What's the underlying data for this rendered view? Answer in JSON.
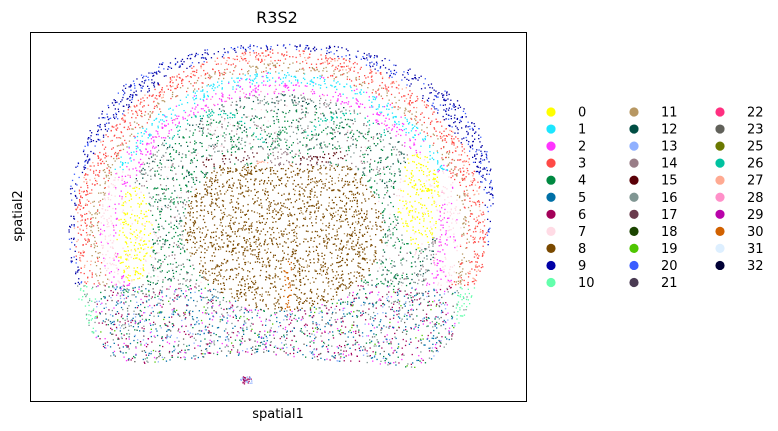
{
  "chart_data": {
    "type": "scatter",
    "title": "R3S2",
    "xlabel": "spatial1",
    "ylabel": "spatial2",
    "grid": false,
    "ticks": false,
    "legend_position": "right",
    "legend_columns": 3,
    "categories": [
      {
        "label": "0",
        "color": "#ffff00"
      },
      {
        "label": "1",
        "color": "#1ce6ff"
      },
      {
        "label": "2",
        "color": "#ff34ff"
      },
      {
        "label": "3",
        "color": "#ff4a46"
      },
      {
        "label": "4",
        "color": "#008941"
      },
      {
        "label": "5",
        "color": "#006fa6"
      },
      {
        "label": "6",
        "color": "#a30059"
      },
      {
        "label": "7",
        "color": "#ffdbe5"
      },
      {
        "label": "8",
        "color": "#7a4900"
      },
      {
        "label": "9",
        "color": "#0000a6"
      },
      {
        "label": "10",
        "color": "#63ffac"
      },
      {
        "label": "11",
        "color": "#b79762"
      },
      {
        "label": "12",
        "color": "#004d43"
      },
      {
        "label": "13",
        "color": "#8fb0ff"
      },
      {
        "label": "14",
        "color": "#997d87"
      },
      {
        "label": "15",
        "color": "#5a0007"
      },
      {
        "label": "16",
        "color": "#809693"
      },
      {
        "label": "17",
        "color": "#6a3a4c"
      },
      {
        "label": "18",
        "color": "#1b4400"
      },
      {
        "label": "19",
        "color": "#4fc601"
      },
      {
        "label": "20",
        "color": "#3b5dff"
      },
      {
        "label": "21",
        "color": "#4a3b53"
      },
      {
        "label": "22",
        "color": "#ff2f80"
      },
      {
        "label": "23",
        "color": "#61615a"
      },
      {
        "label": "25",
        "color": "#6b7900"
      },
      {
        "label": "26",
        "color": "#00c2a0"
      },
      {
        "label": "27",
        "color": "#ffaa92"
      },
      {
        "label": "28",
        "color": "#ff90c9"
      },
      {
        "label": "29",
        "color": "#b903aa"
      },
      {
        "label": "30",
        "color": "#d16100"
      },
      {
        "label": "31",
        "color": "#ddefff"
      },
      {
        "label": "32",
        "color": "#000035"
      }
    ]
  }
}
